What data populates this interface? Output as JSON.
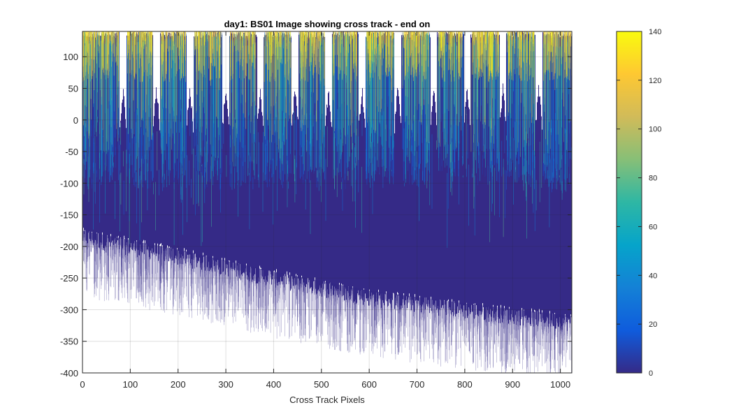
{
  "chart_data": {
    "type": "heatmap",
    "title": "day1: BS01  Image showing cross track - end on",
    "xlabel": "Cross Track Pixels",
    "ylabel": "",
    "xlim": [
      0,
      1024
    ],
    "ylim": [
      -400,
      140
    ],
    "x_ticks": [
      0,
      100,
      200,
      300,
      400,
      500,
      600,
      700,
      800,
      900,
      1000
    ],
    "y_ticks": [
      100,
      50,
      0,
      -50,
      -100,
      -150,
      -200,
      -250,
      -300,
      -350,
      -400
    ],
    "grid": true,
    "colormap": "parula",
    "colorbar": {
      "range": [
        0,
        140
      ],
      "ticks": [
        140,
        120,
        100,
        80,
        60,
        40,
        20,
        0
      ],
      "colors": [
        "#352a87",
        "#0f5cdd",
        "#1481d6",
        "#06a4ca",
        "#2eb7a4",
        "#87bf77",
        "#d1bb59",
        "#fec832",
        "#f9fb0e"
      ]
    },
    "gap_columns": [
      85,
      155,
      225,
      300,
      372,
      445,
      515,
      585,
      660,
      735,
      805,
      880,
      955
    ],
    "upper_envelope_approx": [
      [
        0,
        140
      ],
      [
        1024,
        140
      ]
    ],
    "lower_envelope_approx": [
      [
        0,
        -185
      ],
      [
        200,
        -215
      ],
      [
        400,
        -250
      ],
      [
        600,
        -280
      ],
      [
        800,
        -300
      ],
      [
        1024,
        -320
      ]
    ]
  }
}
